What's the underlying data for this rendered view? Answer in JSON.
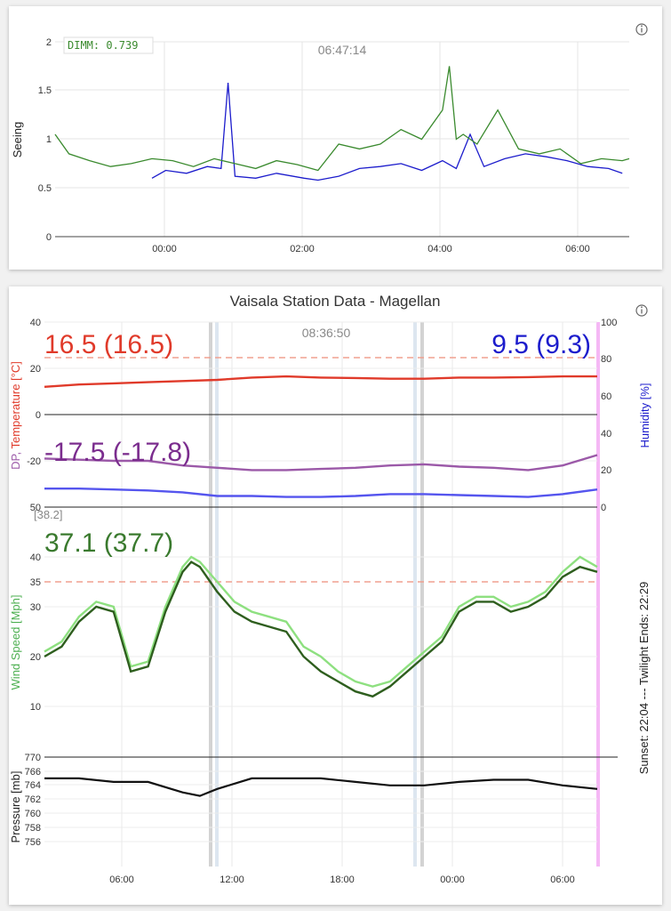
{
  "seeing_panel": {
    "timestamp": "06:47:14",
    "badge": "DIMM: 0.739",
    "ylabel": "Seeing",
    "y_ticks": [
      "2",
      "1.5",
      "1",
      "0.5",
      "0"
    ],
    "x_ticks": [
      "00:00",
      "02:00",
      "04:00",
      "06:00"
    ]
  },
  "vaisala_panel": {
    "title": "Vaisala Station Data - Magellan",
    "timestamp": "08:36:50",
    "temperature_readout": "16.5 (16.5)",
    "humidity_readout": "9.5 (9.3)",
    "dewpoint_readout": "-17.5 (-17.8)",
    "wind_readout": "37.1 (37.7)",
    "wind_direction_label": "[38.2]",
    "temp_ylabel_dp": "DP,",
    "temp_ylabel_main": " Temperature [°C]",
    "humidity_ylabel": "Humidity [%]",
    "wind_ylabel": "Wind Speed [Mph]",
    "pressure_ylabel": "Pressure [mb]",
    "sunset_note": "Sunset: 22:04 --- Twilight Ends: 22:29",
    "temp_ticks": [
      "40",
      "20",
      "0",
      "-20",
      "50"
    ],
    "humidity_ticks": [
      "100",
      "80",
      "60",
      "40",
      "20",
      "0"
    ],
    "wind_ticks": [
      "40",
      "35",
      "30",
      "20",
      "10"
    ],
    "pressure_ticks": [
      "770",
      "766",
      "764",
      "762",
      "760",
      "758",
      "756"
    ],
    "pressure_tick_766": "766",
    "x_ticks": [
      "06:00",
      "12:00",
      "18:00",
      "00:00",
      "06:00"
    ]
  },
  "colors": {
    "dimm": "#3a8a2e",
    "mass": "#1c1ccc",
    "temperature": "#e03a2a",
    "dewpoint": "#9b59a8",
    "humidity": "#5555ee",
    "wind_light": "#8ee080",
    "wind_dark": "#2e5e1e",
    "pressure": "#111111",
    "limit": "#f0a090",
    "twilight": "#ee88ee"
  },
  "chart_data": [
    {
      "type": "line",
      "x_range_hours": [
        22.4,
        30.7
      ],
      "ylim": [
        0,
        2
      ],
      "series": [
        {
          "x": [
            22.4,
            22.6,
            22.9,
            23.2,
            23.5,
            23.8,
            24.1,
            24.4,
            24.7,
            25.0,
            25.3,
            25.6,
            25.9,
            26.2,
            26.5,
            26.8,
            27.1,
            27.4,
            27.7,
            28.0,
            28.1,
            28.2,
            28.3,
            28.5,
            28.8,
            29.1,
            29.4,
            29.7,
            30.0,
            30.3,
            30.6,
            30.7
          ],
          "values": [
            1.05,
            0.85,
            0.78,
            0.72,
            0.75,
            0.8,
            0.78,
            0.72,
            0.8,
            0.75,
            0.7,
            0.78,
            0.74,
            0.68,
            0.95,
            0.9,
            0.95,
            1.1,
            1.0,
            1.3,
            1.75,
            1.0,
            1.05,
            0.95,
            1.3,
            0.9,
            0.85,
            0.9,
            0.75,
            0.8,
            0.78,
            0.8
          ]
        },
        {
          "x": [
            23.8,
            24.0,
            24.3,
            24.6,
            24.8,
            24.9,
            25.0,
            25.3,
            25.6,
            26.0,
            26.2,
            26.5,
            26.8,
            27.1,
            27.4,
            27.7,
            28.0,
            28.2,
            28.4,
            28.6,
            28.9,
            29.2,
            29.5,
            29.8,
            30.1,
            30.4,
            30.6
          ],
          "values": [
            0.6,
            0.68,
            0.65,
            0.72,
            0.7,
            1.58,
            0.62,
            0.6,
            0.65,
            0.6,
            0.58,
            0.62,
            0.7,
            0.72,
            0.75,
            0.68,
            0.78,
            0.7,
            1.05,
            0.72,
            0.8,
            0.85,
            0.82,
            0.78,
            0.72,
            0.7,
            0.65
          ]
        }
      ]
    },
    {
      "type": "line",
      "x_range_hours": [
        2.0,
        34.0
      ],
      "series": [
        {
          "x": [
            2,
            4,
            6,
            8,
            10,
            12,
            14,
            16,
            18,
            20,
            22,
            24,
            26,
            28,
            30,
            32,
            34
          ],
          "values": [
            12,
            13,
            13.5,
            14,
            14.5,
            15,
            16,
            16.5,
            16,
            15.8,
            15.5,
            15.5,
            16,
            16,
            16.2,
            16.5,
            16.5
          ]
        },
        {
          "x": [
            2,
            4,
            6,
            8,
            10,
            12,
            14,
            16,
            18,
            20,
            22,
            24,
            26,
            28,
            30,
            32,
            34
          ],
          "values": [
            -19,
            -19.5,
            -20,
            -20,
            -22,
            -23,
            -24,
            -24,
            -23.5,
            -23,
            -22,
            -21.5,
            -22.5,
            -23,
            -24,
            -22,
            -17.5
          ]
        },
        {
          "x": [
            2,
            4,
            6,
            8,
            10,
            12,
            14,
            16,
            18,
            20,
            22,
            24,
            26,
            28,
            30,
            32,
            34
          ],
          "values": [
            10,
            10,
            9.5,
            9,
            8,
            6,
            6,
            5.5,
            5.5,
            6,
            7,
            7,
            6.5,
            6,
            5.5,
            7,
            9.5
          ]
        },
        {
          "x": [
            2,
            3,
            4,
            5,
            6,
            7,
            8,
            9,
            10,
            10.5,
            11,
            12,
            13,
            14,
            15,
            16,
            17,
            18,
            19,
            20,
            21,
            22,
            23,
            24,
            25,
            26,
            27,
            28,
            29,
            30,
            31,
            32,
            33,
            34
          ],
          "values": [
            21,
            23,
            28,
            31,
            30,
            18,
            19,
            30,
            38,
            40,
            39,
            35,
            31,
            29,
            28,
            27,
            22,
            20,
            17,
            15,
            14,
            15,
            18,
            21,
            24,
            30,
            32,
            32,
            30,
            31,
            33,
            37,
            40,
            38
          ]
        },
        {
          "x": [
            2,
            3,
            4,
            5,
            6,
            7,
            8,
            9,
            10,
            10.5,
            11,
            12,
            13,
            14,
            15,
            16,
            17,
            18,
            19,
            20,
            21,
            22,
            23,
            24,
            25,
            26,
            27,
            28,
            29,
            30,
            31,
            32,
            33,
            34
          ],
          "values": [
            20,
            22,
            27,
            30,
            29,
            17,
            18,
            29,
            37,
            39,
            38,
            33,
            29,
            27,
            26,
            25,
            20,
            17,
            15,
            13,
            12,
            14,
            17,
            20,
            23,
            29,
            31,
            31,
            29,
            30,
            32,
            36,
            38,
            37
          ]
        },
        {
          "x": [
            2,
            4,
            6,
            8,
            10,
            11,
            12,
            14,
            16,
            18,
            20,
            22,
            24,
            26,
            28,
            30,
            32,
            34
          ],
          "values": [
            765,
            765,
            764.5,
            764.5,
            763,
            762.5,
            763.5,
            765,
            765,
            765,
            764.5,
            764,
            764,
            764.5,
            764.8,
            764.8,
            764,
            763.5
          ]
        }
      ]
    }
  ]
}
